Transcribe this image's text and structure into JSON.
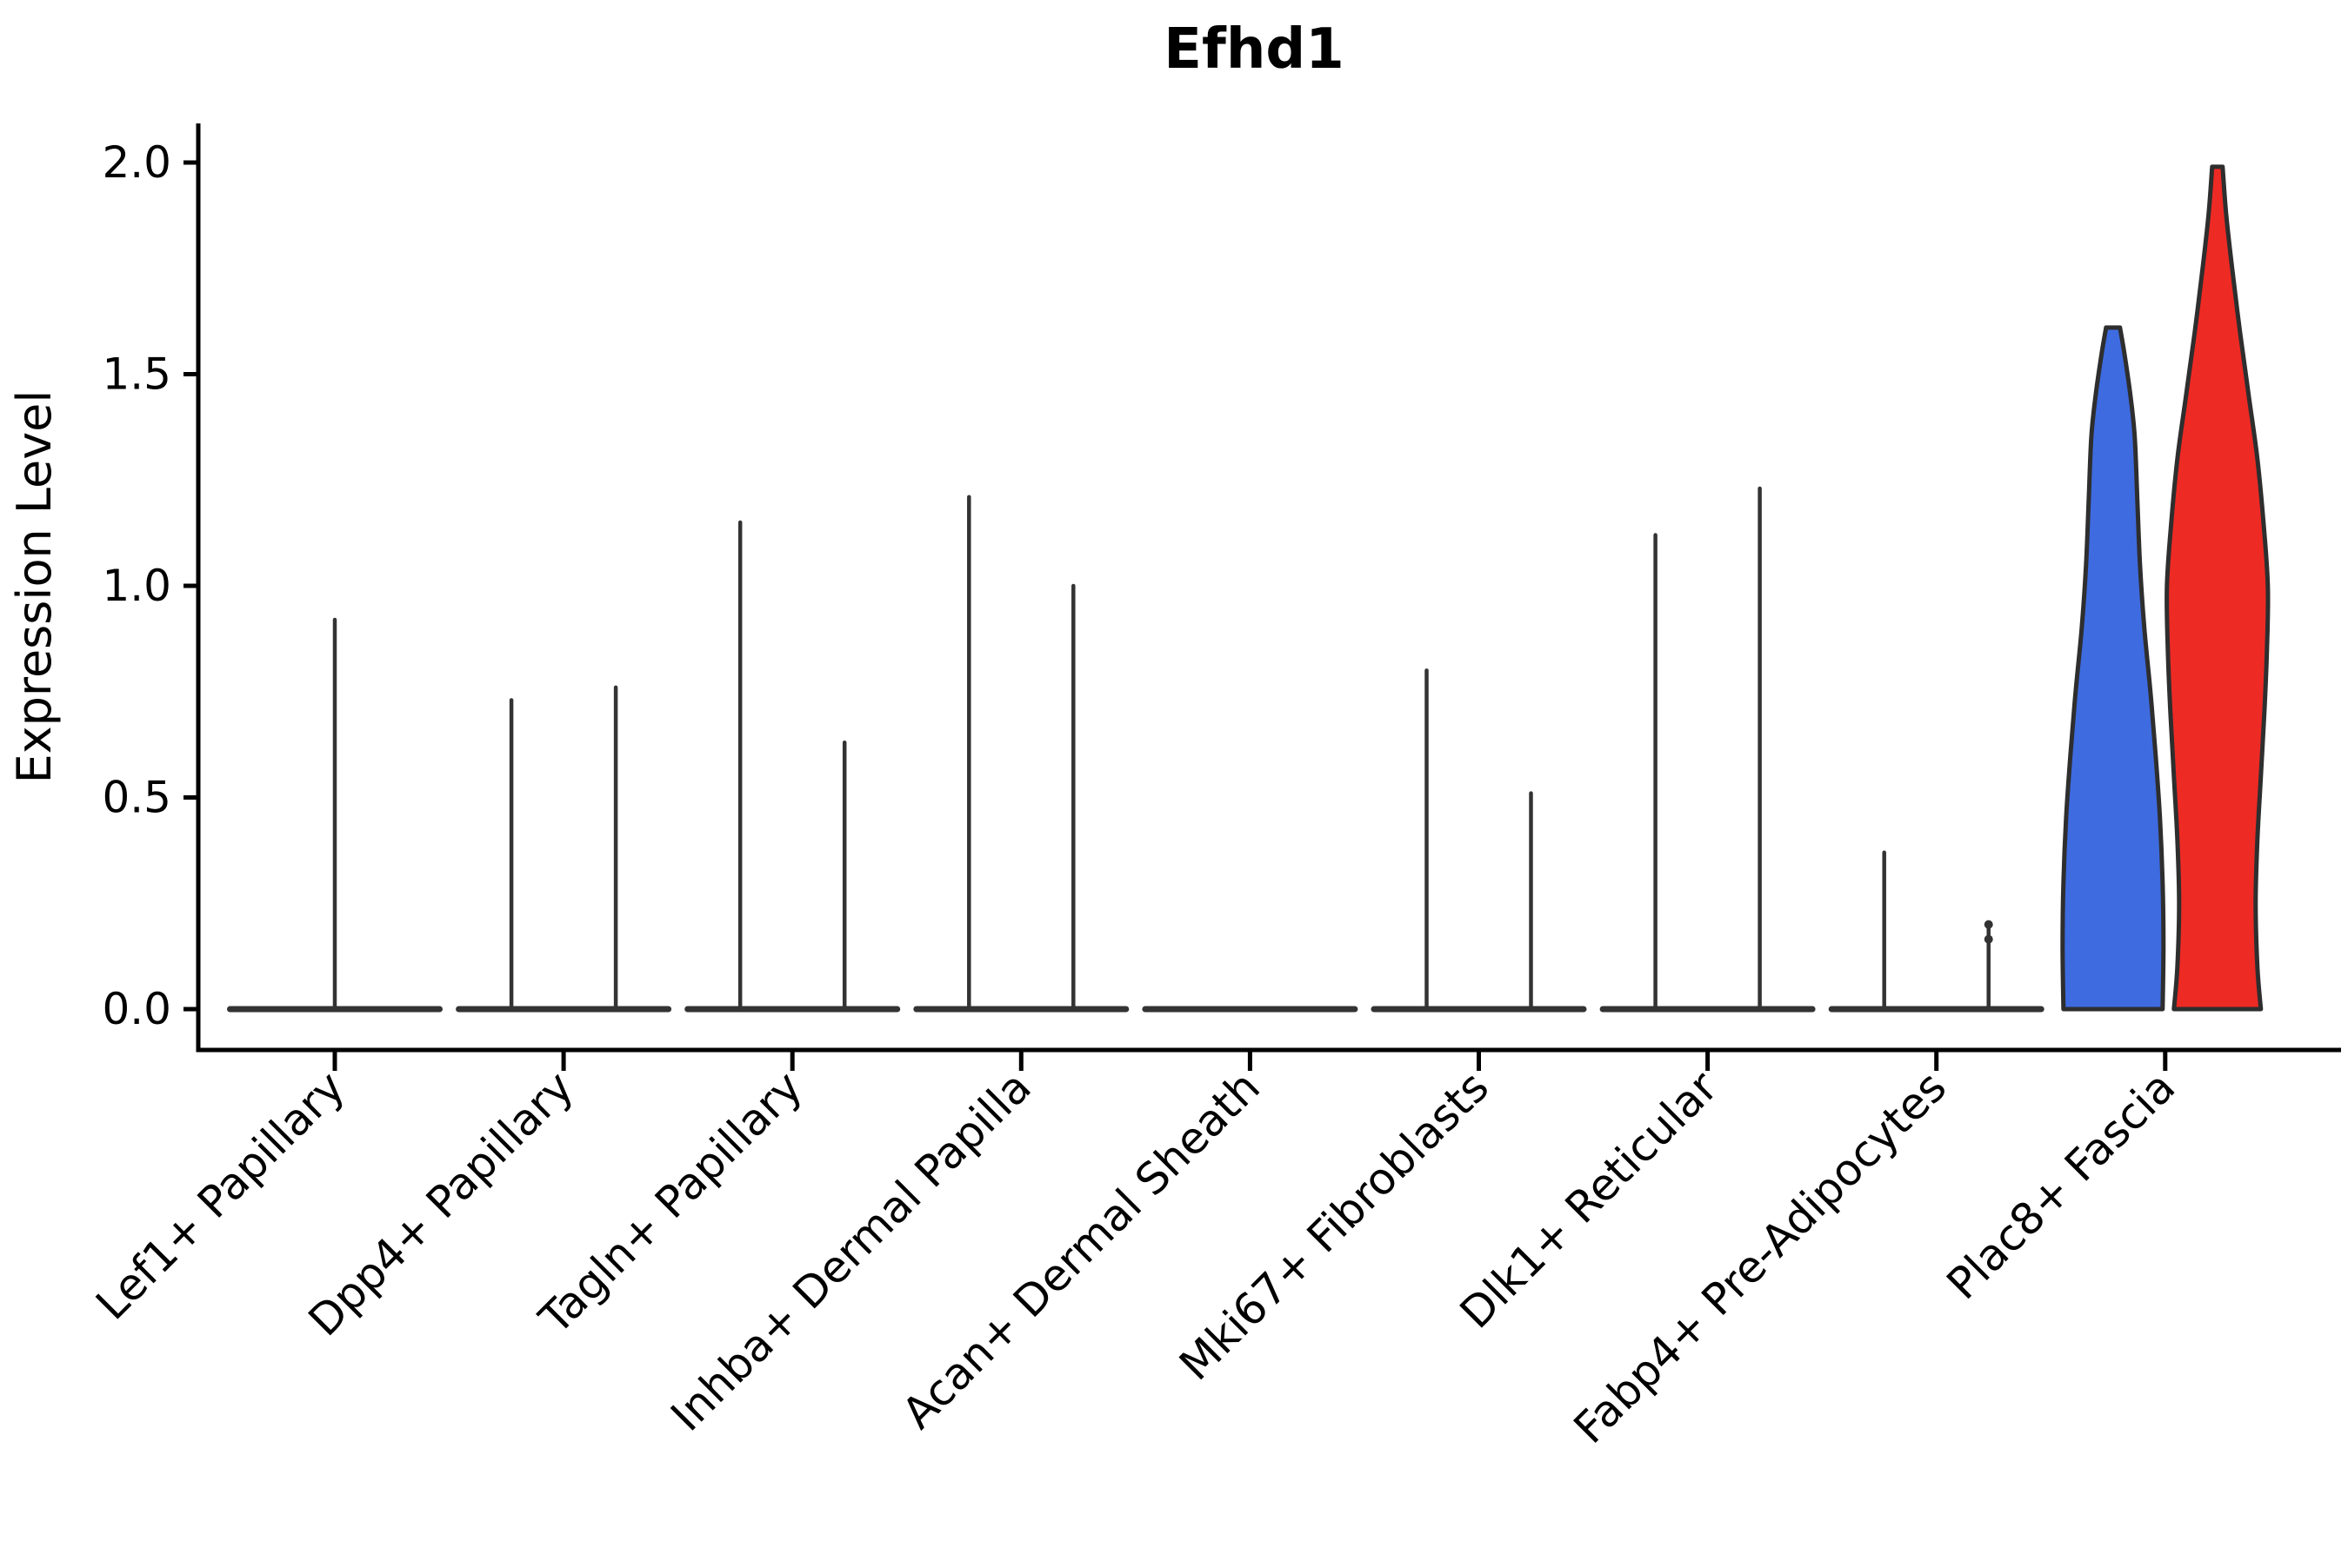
{
  "chart_data": {
    "type": "violin",
    "title": "Efhd1",
    "ylabel": "Expression Level",
    "xlabel": "",
    "ylim": [
      0,
      2.09
    ],
    "ytick_labels": [
      "0.0",
      "0.5",
      "1.0",
      "1.5",
      "2.0"
    ],
    "ytick_values": [
      0,
      0.5,
      1.0,
      1.5,
      2.0
    ],
    "grid": false,
    "legend_position": "none",
    "colors": {
      "group1_fill": "#3E6BE0",
      "group2_fill": "#EE2A24",
      "violin_outline": "#2E2E2E",
      "spike_line": "#333333",
      "axis": "#000000",
      "background": "#ffffff"
    },
    "categories": [
      {
        "label": "Lef1+ Papillary",
        "violins": [
          {
            "group": "all",
            "layout": "full",
            "spike_max": 0.92
          }
        ]
      },
      {
        "label": "Dpp4+ Papillary",
        "violins": [
          {
            "group": "group1",
            "layout": "left",
            "spike_max": 0.73
          },
          {
            "group": "group2",
            "layout": "right",
            "spike_max": 0.76
          }
        ]
      },
      {
        "label": "Tagln+ Papillary",
        "violins": [
          {
            "group": "group1",
            "layout": "left",
            "spike_max": 1.15
          },
          {
            "group": "group2",
            "layout": "right",
            "spike_max": 0.63
          }
        ]
      },
      {
        "label": "Inhba+ Dermal Papilla",
        "violins": [
          {
            "group": "group1",
            "layout": "left",
            "spike_max": 1.21
          },
          {
            "group": "group2",
            "layout": "right",
            "spike_max": 1.0
          }
        ]
      },
      {
        "label": "Acan+ Dermal Sheath",
        "violins": [
          {
            "group": "group1",
            "layout": "left",
            "spike_max": 0
          },
          {
            "group": "group2",
            "layout": "right",
            "spike_max": 0
          }
        ]
      },
      {
        "label": "Mki67+ Fibroblasts",
        "violins": [
          {
            "group": "group1",
            "layout": "left",
            "spike_max": 0.8
          },
          {
            "group": "group2",
            "layout": "right",
            "spike_max": 0.51
          }
        ]
      },
      {
        "label": "Dlk1+ Reticular",
        "violins": [
          {
            "group": "group1",
            "layout": "left",
            "spike_max": 1.12
          },
          {
            "group": "group2",
            "layout": "right",
            "spike_max": 1.23
          }
        ]
      },
      {
        "label": "Fabp4+ Pre-Adipocytes",
        "violins": [
          {
            "group": "group1",
            "layout": "left",
            "spike_max": 0.37
          },
          {
            "group": "group2",
            "layout": "right",
            "spike_max": 0.2,
            "tip_dots": [
              0.2,
              0.165
            ]
          }
        ]
      },
      {
        "label": "Plac8+ Fascia",
        "violins": [
          {
            "group": "group1",
            "layout": "left",
            "shape": "full",
            "spike_max": 1.61,
            "fill": "#3E6BE0",
            "profile": [
              [
                0,
                57
              ],
              [
                0.15,
                58
              ],
              [
                0.3,
                57
              ],
              [
                0.45,
                54
              ],
              [
                0.6,
                49
              ],
              [
                0.75,
                43
              ],
              [
                0.9,
                36
              ],
              [
                1.05,
                31
              ],
              [
                1.2,
                28
              ],
              [
                1.35,
                25
              ],
              [
                1.45,
                20
              ],
              [
                1.55,
                13
              ],
              [
                1.61,
                8
              ]
            ]
          },
          {
            "group": "group2",
            "layout": "right",
            "shape": "full",
            "spike_max": 1.99,
            "fill": "#EE2A24",
            "profile": [
              [
                0,
                50
              ],
              [
                0.1,
                46
              ],
              [
                0.25,
                44
              ],
              [
                0.4,
                46
              ],
              [
                0.55,
                50
              ],
              [
                0.7,
                54
              ],
              [
                0.85,
                57
              ],
              [
                1.0,
                58
              ],
              [
                1.15,
                53
              ],
              [
                1.3,
                46
              ],
              [
                1.45,
                36
              ],
              [
                1.6,
                26
              ],
              [
                1.75,
                17
              ],
              [
                1.88,
                10
              ],
              [
                1.99,
                6
              ]
            ]
          }
        ]
      }
    ]
  }
}
